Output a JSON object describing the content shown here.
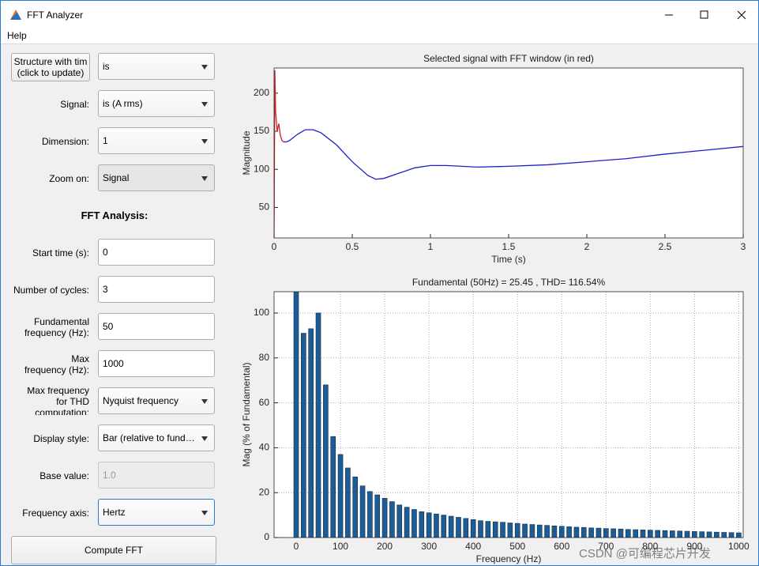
{
  "window": {
    "title": "FFT Analyzer"
  },
  "menu": [
    "Help"
  ],
  "panel": {
    "structure_button": [
      "Structure with tim",
      "(click to update)"
    ],
    "structure_value": "is",
    "heading": "FFT Analysis:",
    "fields": [
      {
        "label": [
          "Signal:"
        ],
        "value": "is (A rms)"
      },
      {
        "label": [
          "Dimension:"
        ],
        "value": "1"
      },
      {
        "label": [
          "Zoom on:"
        ],
        "value": "Signal"
      },
      {
        "label": [
          "Start time (s):"
        ],
        "value": "0"
      },
      {
        "label": [
          "Number of cycles:"
        ],
        "value": "3"
      },
      {
        "label": [
          "Fundamental",
          "frequency (Hz):"
        ],
        "value": "50"
      },
      {
        "label": [
          "Max",
          "frequency (Hz):"
        ],
        "value": "1000"
      },
      {
        "label": [
          "Max frequency",
          "for THD",
          "computation:"
        ],
        "value": "Nyquist frequency"
      },
      {
        "label": [
          "Display style:"
        ],
        "value": "Bar (relative to fund…"
      },
      {
        "label": [
          "Base value:"
        ],
        "value": "1.0"
      },
      {
        "label": [
          "Frequency axis:"
        ],
        "value": "Hertz"
      }
    ],
    "compute_button": "Compute FFT"
  },
  "watermark": "CSDN @可编程芯片开发",
  "chart_data": [
    {
      "type": "line",
      "title": "Selected signal with FFT window (in red)",
      "x_label": "Time (s)",
      "y_label": "Magnitude",
      "x": [
        0,
        0.005,
        0.01,
        0.02,
        0.03,
        0.04,
        0.05,
        0.06,
        0.08,
        0.1,
        0.15,
        0.2,
        0.25,
        0.3,
        0.4,
        0.5,
        0.6,
        0.65,
        0.7,
        0.8,
        0.9,
        1.0,
        1.1,
        1.2,
        1.3,
        1.5,
        1.75,
        2.0,
        2.25,
        2.5,
        2.75,
        3.0
      ],
      "series": [
        {
          "color": "#d62020",
          "values": [
            10,
            230,
            175,
            150,
            160,
            145,
            138,
            136,
            null,
            null,
            null,
            null,
            null,
            null,
            null,
            null,
            null,
            null,
            null,
            null,
            null,
            null,
            null,
            null,
            null,
            null,
            null,
            null,
            null,
            null,
            null,
            null
          ]
        },
        {
          "color": "#1f1fc8",
          "values": [
            null,
            null,
            null,
            null,
            null,
            null,
            null,
            136,
            136,
            138,
            146,
            152,
            152,
            148,
            132,
            110,
            92,
            87,
            88,
            95,
            102,
            105,
            105,
            104,
            103,
            104,
            106,
            110,
            114,
            120,
            125,
            130
          ]
        }
      ],
      "xlim": [
        0,
        3
      ],
      "xticks": [
        0,
        0.5,
        1,
        1.5,
        2,
        2.5,
        3
      ],
      "ylim": [
        10,
        233
      ],
      "yticks": [
        50,
        100,
        150,
        200
      ],
      "grid": false
    },
    {
      "type": "bar",
      "title": "Fundamental (50Hz) = 25.45 , THD= 116.54%",
      "x_label": "Frequency (Hz)",
      "y_label": "Mag (% of Fundamental)",
      "x": [
        0,
        16.67,
        33.33,
        50,
        66.67,
        83.33,
        100,
        116.67,
        133.33,
        150,
        166.67,
        183.33,
        200,
        216.67,
        233.33,
        250,
        266.67,
        283.33,
        300,
        316.67,
        333.33,
        350,
        366.67,
        383.33,
        400,
        416.67,
        433.33,
        450,
        466.67,
        483.33,
        500,
        516.67,
        533.33,
        550,
        566.67,
        583.33,
        600,
        616.67,
        633.33,
        650,
        666.67,
        683.33,
        700,
        716.67,
        733.33,
        750,
        766.67,
        783.33,
        800,
        816.67,
        833.33,
        850,
        866.67,
        883.33,
        900,
        916.67,
        933.33,
        950,
        966.67,
        983.33,
        1000
      ],
      "values": [
        110,
        91,
        93,
        100,
        68,
        45,
        37,
        31,
        27,
        23,
        20.5,
        19,
        17.5,
        16,
        14.5,
        13.5,
        12.5,
        11.5,
        11,
        10.5,
        10,
        9.5,
        9,
        8.5,
        8,
        7.5,
        7.2,
        7,
        6.8,
        6.5,
        6.3,
        6,
        5.8,
        5.6,
        5.4,
        5.2,
        5,
        4.8,
        4.6,
        4.5,
        4.3,
        4.2,
        4,
        3.9,
        3.8,
        3.6,
        3.5,
        3.4,
        3.3,
        3.2,
        3.1,
        3,
        2.9,
        2.8,
        2.7,
        2.6,
        2.5,
        2.4,
        2.3,
        2.2,
        2.1
      ],
      "color": "#1d5c95",
      "xlim": [
        -50,
        1010
      ],
      "xticks": [
        0,
        100,
        200,
        300,
        400,
        500,
        600,
        700,
        800,
        900,
        1000
      ],
      "ylim": [
        0,
        109.5
      ],
      "yticks": [
        0,
        20,
        40,
        60,
        80,
        100
      ],
      "grid": true
    }
  ]
}
